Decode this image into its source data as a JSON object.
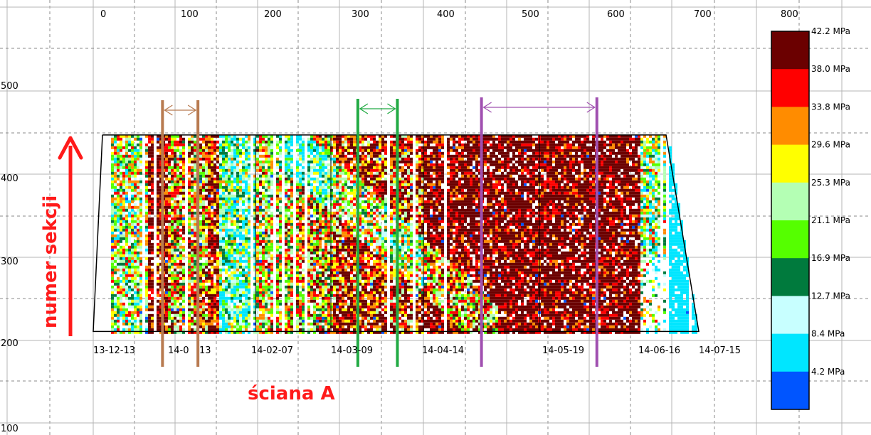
{
  "chart_data": {
    "type": "heatmap",
    "x_axis": {
      "range": [
        0,
        800
      ],
      "ticks": [
        "0",
        "100",
        "200",
        "300",
        "400",
        "500",
        "600",
        "700",
        "800"
      ]
    },
    "y_axis": {
      "label": "numer sekcji",
      "range": [
        100,
        560
      ],
      "ticks": [
        "100",
        "200",
        "300",
        "400",
        "500"
      ]
    },
    "xlabel": "ściana A",
    "dates": [
      "13-12-13",
      "14-01-13",
      "14-02-07",
      "14-03-09",
      "14-04-14",
      "14-05-19",
      "14-06-16",
      "14-07-15"
    ],
    "dates_visible": [
      "13-12-13",
      "14-0",
      "13",
      "14-02-07",
      "14-03-09",
      "14-04-14",
      "14-05-19",
      "14-06-16",
      "14-07-15"
    ],
    "colorbar": {
      "unit": "MPa",
      "labels": [
        "42.2 MPa",
        "38.0 MPa",
        "33.8 MPa",
        "29.6 MPa",
        "25.3 MPa",
        "21.1 MPa",
        "16.9 MPa",
        "12.7 MPa",
        "8.4 MPa",
        "4.2 MPa"
      ],
      "values": [
        42.2,
        38.0,
        33.8,
        29.6,
        25.3,
        21.1,
        16.9,
        12.7,
        8.4,
        4.2
      ],
      "colors": [
        "#6b0000",
        "#ff0000",
        "#ff8c00",
        "#ffff00",
        "#b4ffb4",
        "#55ff00",
        "#007a3d",
        "#c8ffff",
        "#00e6ff",
        "#0055ff"
      ]
    },
    "intervals": [
      {
        "x": [
          78,
          121
        ],
        "color": "#b87a50"
      },
      {
        "x": [
          315,
          363
        ],
        "color": "#22aa44"
      },
      {
        "x": [
          465,
          605
        ],
        "color": "#a050b0"
      }
    ],
    "grid": true
  },
  "annotations": {
    "y_text": "numer sekcji",
    "x_text": "ściana A",
    "accent": "#ff1a1a"
  }
}
